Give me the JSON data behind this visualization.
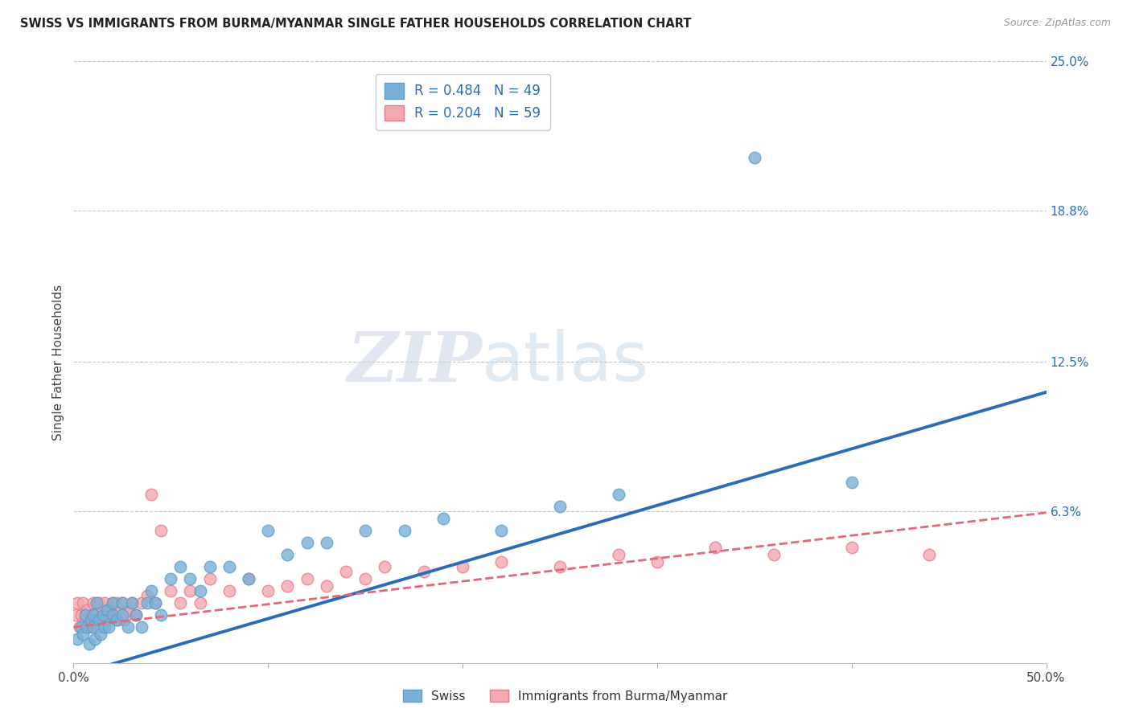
{
  "title": "SWISS VS IMMIGRANTS FROM BURMA/MYANMAR SINGLE FATHER HOUSEHOLDS CORRELATION CHART",
  "source": "Source: ZipAtlas.com",
  "ylabel": "Single Father Households",
  "xlim": [
    0.0,
    0.5
  ],
  "ylim": [
    0.0,
    0.25
  ],
  "ytick_labels_right": [
    "25.0%",
    "18.8%",
    "12.5%",
    "6.3%"
  ],
  "ytick_vals_right": [
    0.25,
    0.188,
    0.125,
    0.063
  ],
  "background_color": "#ffffff",
  "grid_color": "#c8c8c8",
  "watermark_zip": "ZIP",
  "watermark_atlas": "atlas",
  "swiss_scatter_color": "#7ab0d8",
  "swiss_edge_color": "#5b9ec9",
  "burma_scatter_color": "#f4a8b0",
  "burma_edge_color": "#e87a88",
  "line_blue": "#2b6cb8",
  "line_pink": "#e06878",
  "R_swiss": 0.484,
  "N_swiss": 49,
  "R_burma": 0.204,
  "N_burma": 59,
  "swiss_x": [
    0.002,
    0.004,
    0.005,
    0.006,
    0.007,
    0.008,
    0.009,
    0.01,
    0.01,
    0.011,
    0.012,
    0.013,
    0.014,
    0.015,
    0.016,
    0.017,
    0.018,
    0.02,
    0.02,
    0.022,
    0.025,
    0.025,
    0.028,
    0.03,
    0.032,
    0.035,
    0.038,
    0.04,
    0.042,
    0.045,
    0.05,
    0.055,
    0.06,
    0.065,
    0.07,
    0.08,
    0.09,
    0.1,
    0.11,
    0.12,
    0.13,
    0.15,
    0.17,
    0.19,
    0.22,
    0.25,
    0.28,
    0.35,
    0.4
  ],
  "swiss_y": [
    0.01,
    0.015,
    0.012,
    0.02,
    0.015,
    0.008,
    0.018,
    0.02,
    0.015,
    0.01,
    0.025,
    0.018,
    0.012,
    0.02,
    0.015,
    0.022,
    0.015,
    0.02,
    0.025,
    0.018,
    0.025,
    0.02,
    0.015,
    0.025,
    0.02,
    0.015,
    0.025,
    0.03,
    0.025,
    0.02,
    0.035,
    0.04,
    0.035,
    0.03,
    0.04,
    0.04,
    0.035,
    0.055,
    0.045,
    0.05,
    0.05,
    0.055,
    0.055,
    0.06,
    0.055,
    0.065,
    0.07,
    0.21,
    0.075
  ],
  "burma_x": [
    0.001,
    0.002,
    0.003,
    0.004,
    0.005,
    0.006,
    0.007,
    0.008,
    0.009,
    0.01,
    0.011,
    0.012,
    0.013,
    0.014,
    0.015,
    0.016,
    0.017,
    0.018,
    0.019,
    0.02,
    0.021,
    0.022,
    0.023,
    0.024,
    0.025,
    0.026,
    0.027,
    0.028,
    0.03,
    0.032,
    0.035,
    0.038,
    0.04,
    0.042,
    0.045,
    0.05,
    0.055,
    0.06,
    0.065,
    0.07,
    0.08,
    0.09,
    0.1,
    0.11,
    0.12,
    0.13,
    0.14,
    0.15,
    0.16,
    0.18,
    0.2,
    0.22,
    0.25,
    0.28,
    0.3,
    0.33,
    0.36,
    0.4,
    0.44
  ],
  "burma_y": [
    0.02,
    0.025,
    0.015,
    0.02,
    0.025,
    0.018,
    0.022,
    0.015,
    0.02,
    0.025,
    0.018,
    0.02,
    0.025,
    0.015,
    0.022,
    0.025,
    0.018,
    0.02,
    0.022,
    0.025,
    0.02,
    0.025,
    0.018,
    0.022,
    0.025,
    0.018,
    0.02,
    0.022,
    0.025,
    0.02,
    0.025,
    0.028,
    0.07,
    0.025,
    0.055,
    0.03,
    0.025,
    0.03,
    0.025,
    0.035,
    0.03,
    0.035,
    0.03,
    0.032,
    0.035,
    0.032,
    0.038,
    0.035,
    0.04,
    0.038,
    0.04,
    0.042,
    0.04,
    0.045,
    0.042,
    0.048,
    0.045,
    0.048,
    0.045
  ]
}
